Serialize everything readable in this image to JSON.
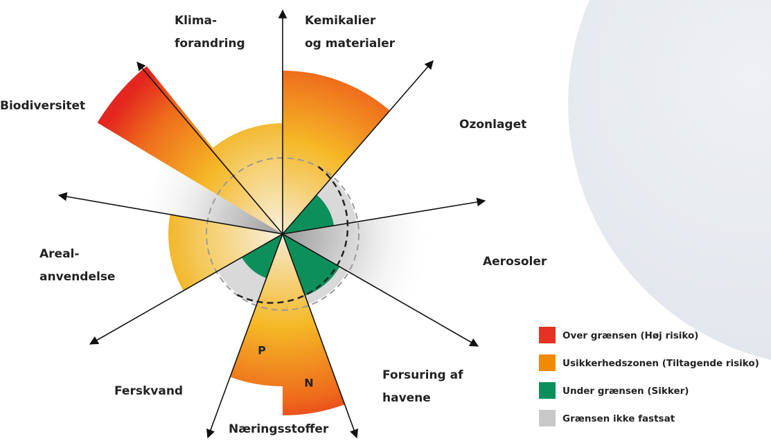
{
  "diagram": {
    "labels": [
      {
        "lines": [
          "Klima-",
          "forandring"
        ]
      },
      {
        "lines": [
          "Kemikalier",
          "og materialer"
        ]
      },
      {
        "lines": [
          "Biodiversitet"
        ]
      },
      {
        "lines": [
          "Ozonlaget"
        ]
      },
      {
        "lines": [
          "Aerosoler"
        ]
      },
      {
        "lines": [
          "Areal-",
          "anvendelse"
        ]
      },
      {
        "lines": [
          "Forsuring af",
          "havene"
        ]
      },
      {
        "lines": [
          "Ferskvand"
        ]
      },
      {
        "lines": [
          "Næringsstoffer"
        ]
      }
    ],
    "markers": [
      "P",
      "N"
    ]
  },
  "legend": [
    {
      "label": "Over grænsen (Høj risiko)",
      "color": "#e53222"
    },
    {
      "label": "Usikkerhedszonen (Tiltagende risiko)",
      "color": "#f28a00"
    },
    {
      "label": "Under grænsen (Sikker)",
      "color": "#0d8f5b"
    },
    {
      "label": "Grænsen ikke fastsat",
      "color": "#c9c9c9"
    }
  ]
}
